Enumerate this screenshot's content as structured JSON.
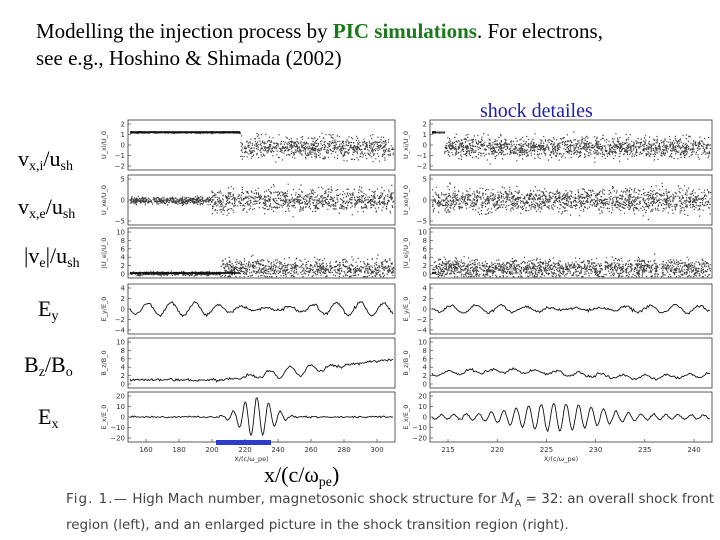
{
  "title": {
    "line1_pre": "Modelling the injection process by ",
    "line1_highlight": "PIC simulations",
    "line1_post": ". For electrons,",
    "line2": "see e.g., Hoshino & Shimada (2002)"
  },
  "shock_label": "shock detailes",
  "row_labels": [
    {
      "main": "v",
      "sub": "x,i",
      "rest": "/u",
      "sub2": "sh"
    },
    {
      "main": "v",
      "sub": "x,e",
      "rest": "/u",
      "sub2": "sh"
    },
    {
      "main": "|v",
      "sub": "e",
      "rest": "|/u",
      "sub2": "sh"
    },
    {
      "main": "E",
      "sub": "y",
      "rest": "",
      "sub2": ""
    },
    {
      "main": "B",
      "sub": "z",
      "rest": "/B",
      "sub2": "o"
    },
    {
      "main": "E",
      "sub": "x",
      "rest": "",
      "sub2": ""
    }
  ],
  "xaxis_label": {
    "pre": "x/(c/ω",
    "sub": "pe",
    "post": ")"
  },
  "left_panel": {
    "ylabels": [
      "U_xi/U_0",
      "U_xe/U_0",
      "|U_e|/U_0",
      "E_y/E_0",
      "B_z/B_0",
      "E_x/E_0"
    ],
    "yticks": [
      [
        "2",
        "1",
        "0",
        "−1",
        "−2"
      ],
      [
        "5",
        "0",
        "−5"
      ],
      [
        "10",
        "8",
        "6",
        "4",
        "2",
        "0"
      ],
      [
        "4",
        "2",
        "0",
        "−2",
        "−4"
      ],
      [
        "10",
        "8",
        "6",
        "4",
        "2",
        "0"
      ],
      [
        "20",
        "10",
        "0",
        "−10",
        "−20"
      ]
    ],
    "xticks": [
      "160",
      "180",
      "200",
      "220",
      "240",
      "260",
      "280",
      "300"
    ],
    "xtitle": "X/(c/ω_pe)"
  },
  "right_panel": {
    "ylabels": [
      "U_xi/U_0",
      "U_xe/U_0",
      "|U_e|/U_0",
      "E_y/E_0",
      "B_z/B_0",
      "E_x/E_0"
    ],
    "yticks": [
      [
        "2",
        "1",
        "0",
        "−1",
        "−2"
      ],
      [
        "5",
        "0",
        "−5"
      ],
      [
        "10",
        "8",
        "6",
        "4",
        "2",
        "0"
      ],
      [
        "4",
        "2",
        "0",
        "−2",
        "−4"
      ],
      [
        "10",
        "8",
        "6",
        "4",
        "2",
        "0"
      ],
      [
        "20",
        "10",
        "0",
        "−10",
        "−20"
      ]
    ],
    "xticks": [
      "215",
      "220",
      "225",
      "230",
      "235",
      "240"
    ],
    "xtitle": "X/(c/ω_pe)"
  },
  "highlight_bar_color": "#2a3cc8",
  "caption": {
    "figno": "Fig. 1.—",
    "text_pre": " High Mach number, magnetosonic shock structure for ",
    "math": "M",
    "math_sub": "A",
    "math_post": " = 32",
    "text_post": ":  an overall shock front region (left), and an enlarged picture in the shock transition region (right)."
  }
}
